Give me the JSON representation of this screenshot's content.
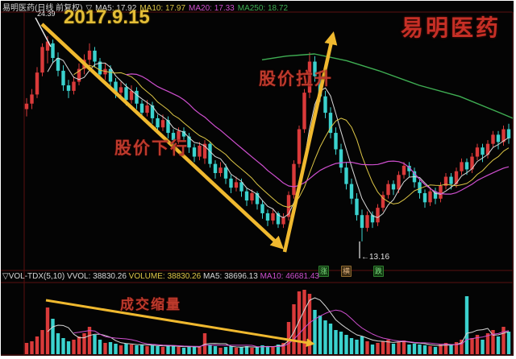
{
  "header": {
    "instrument": "易明医药(日线 前复权)",
    "toggle": "▽",
    "ma5": "MA5: 17.92",
    "ma10": "MA10: 17.97",
    "ma20": "MA20: 17.33",
    "ma250": "MA250: 18.72"
  },
  "overlay": {
    "peak_price": "24.39",
    "date": "2017.9.15",
    "watermark": "易明医药",
    "low_price": "←13.16"
  },
  "annotations": {
    "price_down": "股价下行",
    "price_up": "股价拉升",
    "volume_shrink": "成交缩量"
  },
  "volume_header": {
    "name": "▽VOL-TDX(5,10)",
    "vvol": "VVOL: 38830.26",
    "volume": "VOLUME: 38830.26",
    "ma5": "MA5: 38696.13",
    "ma10": "MA10: 46681.43"
  },
  "badges": [
    "涨",
    "横",
    "跌"
  ],
  "colors": {
    "up": "#d93a3a",
    "down": "#3bd2ce",
    "ma5": "#d8d8d8",
    "ma10": "#ddc646",
    "ma20": "#cf4fcf",
    "ma250": "#3fae53",
    "arrow": "#f0b92f",
    "grid": "#5a0f0f",
    "background": "#040404"
  },
  "chart_data": {
    "type": "candlestick",
    "title": "易明医药 日线 前复权",
    "date_marked": "2017.9.15",
    "price_high_label": 24.39,
    "price_low_label": 13.16,
    "legend": [
      "MA5 17.92",
      "MA10 17.97",
      "MA20 17.33",
      "MA250 18.72"
    ],
    "volume_legend": [
      "VVOL 38830.26",
      "VOLUME 38830.26",
      "MA5 38696.13",
      "MA10 46681.43"
    ],
    "ylim": [
      12.0,
      25.05
    ],
    "candles_format": [
      "open",
      "high",
      "low",
      "close",
      "relative_volume"
    ],
    "candles": [
      [
        20.4,
        21.0,
        20.0,
        20.7,
        14
      ],
      [
        20.7,
        21.5,
        20.4,
        21.2,
        16
      ],
      [
        21.2,
        22.7,
        21.0,
        22.4,
        22
      ],
      [
        22.4,
        24.0,
        22.2,
        23.8,
        30
      ],
      [
        23.6,
        24.39,
        22.9,
        24.1,
        58
      ],
      [
        24.0,
        24.2,
        22.9,
        23.2,
        44
      ],
      [
        23.2,
        23.5,
        22.2,
        22.5,
        26
      ],
      [
        22.5,
        22.8,
        21.4,
        21.7,
        20
      ],
      [
        21.7,
        22.0,
        21.0,
        21.4,
        16
      ],
      [
        21.4,
        22.2,
        21.2,
        21.9,
        18
      ],
      [
        21.9,
        22.9,
        21.7,
        22.6,
        22
      ],
      [
        22.6,
        23.4,
        22.3,
        23.1,
        26
      ],
      [
        23.1,
        24.0,
        22.8,
        23.6,
        34
      ],
      [
        23.6,
        23.8,
        22.7,
        23.0,
        24
      ],
      [
        23.0,
        23.2,
        22.0,
        22.3,
        18
      ],
      [
        22.3,
        22.9,
        22.0,
        22.6,
        14
      ],
      [
        22.6,
        22.8,
        21.6,
        21.9,
        15
      ],
      [
        21.9,
        22.1,
        21.0,
        21.3,
        13
      ],
      [
        21.3,
        21.9,
        21.1,
        21.6,
        11
      ],
      [
        21.6,
        21.8,
        20.6,
        20.9,
        13
      ],
      [
        20.9,
        21.7,
        20.7,
        21.4,
        12
      ],
      [
        21.4,
        21.6,
        20.4,
        20.7,
        11
      ],
      [
        20.7,
        20.9,
        19.9,
        20.2,
        12
      ],
      [
        20.2,
        20.9,
        20.0,
        20.6,
        10
      ],
      [
        20.6,
        20.8,
        19.6,
        19.9,
        11
      ],
      [
        19.9,
        20.1,
        19.1,
        19.4,
        10
      ],
      [
        19.4,
        20.1,
        19.2,
        19.8,
        9
      ],
      [
        19.8,
        20.0,
        18.8,
        19.1,
        11
      ],
      [
        19.1,
        19.3,
        18.4,
        18.7,
        10
      ],
      [
        18.7,
        19.4,
        18.5,
        19.2,
        9
      ],
      [
        19.2,
        19.4,
        18.6,
        18.9,
        8
      ],
      [
        18.9,
        19.1,
        18.0,
        18.3,
        9
      ],
      [
        18.3,
        18.5,
        17.5,
        17.8,
        10
      ],
      [
        17.8,
        18.6,
        17.6,
        18.4,
        9
      ],
      [
        17.7,
        18.7,
        17.4,
        18.5,
        26
      ],
      [
        18.5,
        18.6,
        17.2,
        17.4,
        12
      ],
      [
        17.4,
        17.6,
        16.6,
        16.9,
        10
      ],
      [
        16.9,
        17.5,
        16.7,
        17.2,
        8
      ],
      [
        17.2,
        17.4,
        16.3,
        16.6,
        9
      ],
      [
        16.6,
        16.8,
        15.8,
        16.1,
        10
      ],
      [
        16.1,
        16.7,
        15.9,
        16.4,
        8
      ],
      [
        16.4,
        16.6,
        15.6,
        15.9,
        9
      ],
      [
        15.9,
        16.1,
        15.1,
        15.4,
        10
      ],
      [
        15.4,
        16.0,
        15.2,
        15.8,
        8
      ],
      [
        15.8,
        15.9,
        14.9,
        15.2,
        9
      ],
      [
        15.2,
        15.4,
        14.4,
        14.7,
        11
      ],
      [
        14.7,
        14.9,
        14.0,
        14.3,
        10
      ],
      [
        14.3,
        14.9,
        14.1,
        14.7,
        9
      ],
      [
        14.7,
        14.8,
        13.9,
        14.1,
        12
      ],
      [
        14.1,
        14.7,
        13.9,
        14.5,
        14
      ],
      [
        14.5,
        15.9,
        14.3,
        15.7,
        40
      ],
      [
        15.7,
        17.6,
        15.5,
        17.4,
        62
      ],
      [
        17.4,
        19.5,
        17.2,
        19.3,
        78
      ],
      [
        19.3,
        21.5,
        19.1,
        21.3,
        80
      ],
      [
        21.3,
        23.5,
        21.0,
        23.0,
        75
      ],
      [
        23.0,
        23.3,
        21.9,
        22.2,
        55
      ],
      [
        22.2,
        22.5,
        20.8,
        21.1,
        48
      ],
      [
        21.1,
        21.4,
        19.9,
        20.2,
        42
      ],
      [
        20.2,
        20.5,
        18.8,
        19.1,
        38
      ],
      [
        19.1,
        19.4,
        17.9,
        18.2,
        30
      ],
      [
        18.2,
        18.5,
        16.9,
        17.2,
        28
      ],
      [
        17.2,
        17.5,
        16.0,
        16.3,
        24
      ],
      [
        16.3,
        16.6,
        15.2,
        15.5,
        20
      ],
      [
        15.5,
        15.8,
        14.3,
        14.6,
        18
      ],
      [
        14.6,
        14.9,
        13.16,
        13.9,
        22
      ],
      [
        13.9,
        14.8,
        13.7,
        14.6,
        16
      ],
      [
        14.6,
        14.8,
        13.9,
        14.2,
        12
      ],
      [
        14.2,
        15.2,
        14.0,
        15.0,
        14
      ],
      [
        15.0,
        15.9,
        14.8,
        15.7,
        16
      ],
      [
        15.7,
        16.5,
        15.5,
        16.3,
        18
      ],
      [
        16.3,
        16.5,
        15.7,
        16.0,
        13
      ],
      [
        16.0,
        17.0,
        15.8,
        16.8,
        15
      ],
      [
        16.8,
        17.5,
        16.6,
        17.3,
        17
      ],
      [
        17.3,
        17.5,
        16.7,
        17.0,
        12
      ],
      [
        17.0,
        17.2,
        16.1,
        16.4,
        13
      ],
      [
        16.4,
        16.6,
        15.5,
        15.8,
        12
      ],
      [
        15.8,
        16.0,
        15.0,
        15.3,
        11
      ],
      [
        15.3,
        16.1,
        15.1,
        15.9,
        10
      ],
      [
        15.9,
        16.1,
        15.2,
        15.5,
        9
      ],
      [
        15.5,
        16.4,
        15.3,
        16.2,
        12
      ],
      [
        16.2,
        16.9,
        16.0,
        16.7,
        14
      ],
      [
        16.7,
        16.9,
        16.0,
        16.3,
        11
      ],
      [
        16.3,
        17.2,
        16.1,
        17.0,
        15
      ],
      [
        17.0,
        17.7,
        16.8,
        17.5,
        18
      ],
      [
        17.5,
        17.7,
        16.8,
        17.1,
        72
      ],
      [
        17.1,
        18.0,
        16.9,
        17.8,
        20
      ],
      [
        17.8,
        18.5,
        17.6,
        18.3,
        24
      ],
      [
        18.3,
        18.5,
        17.5,
        17.9,
        18
      ],
      [
        17.9,
        18.7,
        17.7,
        18.5,
        26
      ],
      [
        18.5,
        19.2,
        18.3,
        19.0,
        30
      ],
      [
        19.0,
        19.2,
        18.2,
        18.6,
        22
      ],
      [
        18.6,
        19.5,
        18.4,
        19.3,
        34
      ],
      [
        19.3,
        19.6,
        18.5,
        18.8,
        28
      ]
    ],
    "ma250_path": [
      [
        325,
        23.1
      ],
      [
        355,
        23.3
      ],
      [
        390,
        23.42
      ],
      [
        430,
        23.05
      ],
      [
        470,
        22.5
      ],
      [
        520,
        21.7
      ],
      [
        570,
        21.1
      ],
      [
        620,
        20.2
      ],
      [
        636,
        19.9
      ]
    ],
    "arrows": [
      {
        "name": "price-down-arrow",
        "from": [
          52,
          30
        ],
        "to": [
          349,
          307
        ],
        "width": 4.5
      },
      {
        "name": "price-up-arrow",
        "from": [
          353,
          313
        ],
        "to": [
          413,
          43
        ],
        "width": 4.5
      },
      {
        "name": "volume-shrink-arrow",
        "from": [
          57,
          373
        ],
        "to": [
          388,
          427
        ],
        "width": 3
      }
    ]
  }
}
